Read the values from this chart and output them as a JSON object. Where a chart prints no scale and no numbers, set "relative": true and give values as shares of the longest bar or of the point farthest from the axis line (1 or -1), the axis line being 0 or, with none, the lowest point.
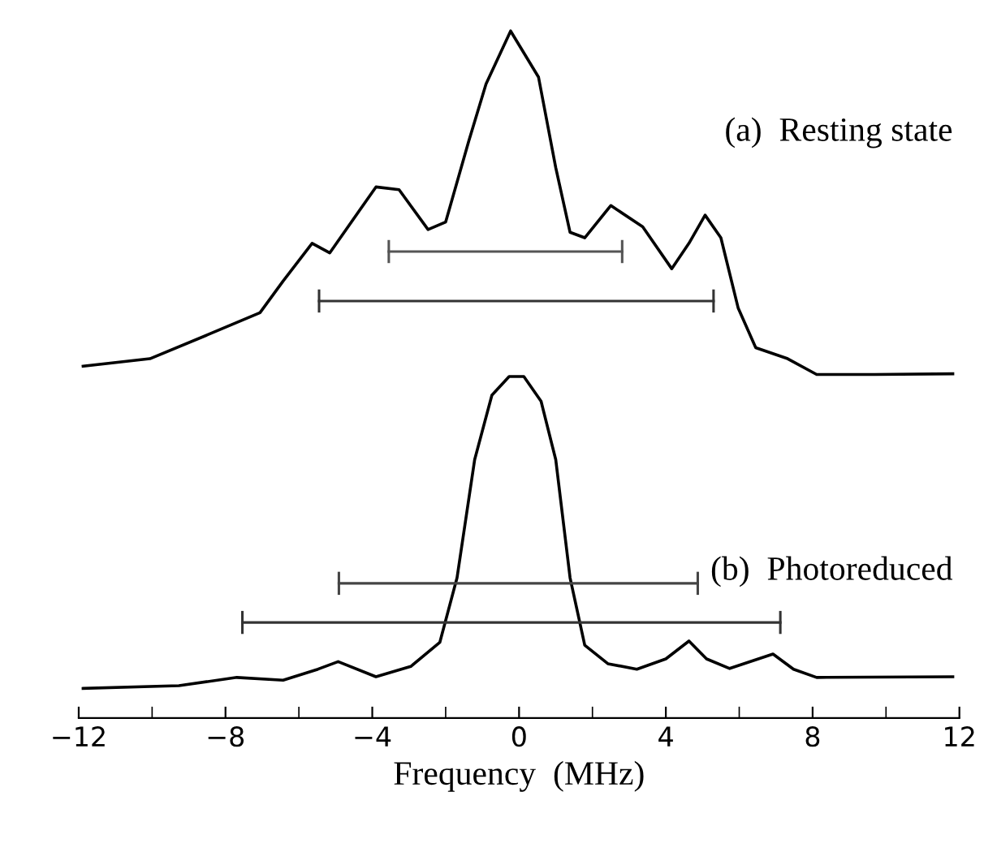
{
  "chart_data": {
    "type": "line",
    "relative": true,
    "xlabel": "Frequency  (MHz)",
    "xlim": [
      -12,
      12
    ],
    "xticks": [
      {
        "value": -12,
        "label": "−12"
      },
      {
        "value": -10,
        "label": null
      },
      {
        "value": -8,
        "label": "−8"
      },
      {
        "value": -6,
        "label": null
      },
      {
        "value": -4,
        "label": "−4"
      },
      {
        "value": -2,
        "label": null
      },
      0,
      {
        "value": 2,
        "label": null
      },
      4,
      {
        "value": 6,
        "label": null
      },
      8,
      {
        "value": 10,
        "label": null
      },
      12
    ],
    "tick_labels": "x",
    "grid": false,
    "series": [
      {
        "name": "(a)  Resting state",
        "color": "#000000",
        "x": [
          -11.88,
          -10.06,
          -8.48,
          -7.06,
          -6.43,
          -5.64,
          -5.16,
          -3.9,
          -3.27,
          -2.48,
          -2.0,
          -1.37,
          -0.9,
          -0.23,
          0.53,
          1.0,
          1.39,
          1.79,
          2.5,
          3.37,
          4.16,
          4.63,
          5.07,
          5.5,
          5.97,
          6.45,
          7.32,
          8.11,
          9.69,
          11.82
        ],
        "values": [
          0.512,
          0.523,
          0.558,
          0.59,
          0.636,
          0.691,
          0.677,
          0.773,
          0.769,
          0.711,
          0.722,
          0.84,
          0.923,
          1.0,
          0.933,
          0.801,
          0.707,
          0.699,
          0.746,
          0.715,
          0.654,
          0.691,
          0.732,
          0.699,
          0.597,
          0.539,
          0.523,
          0.5,
          0.5,
          0.501
        ]
      },
      {
        "name": "(b)  Photoreduced",
        "color": "#000000",
        "x": [
          -11.88,
          -9.27,
          -7.69,
          -6.43,
          -5.48,
          -4.93,
          -3.9,
          -2.95,
          -2.16,
          -1.69,
          -1.21,
          -0.74,
          -0.27,
          0.13,
          0.6,
          1.0,
          1.39,
          1.79,
          2.42,
          3.21,
          4.0,
          4.63,
          5.11,
          5.74,
          6.92,
          7.48,
          8.11,
          11.82
        ],
        "values": [
          0.043,
          0.047,
          0.059,
          0.055,
          0.071,
          0.082,
          0.06,
          0.075,
          0.11,
          0.204,
          0.376,
          0.47,
          0.497,
          0.497,
          0.461,
          0.376,
          0.204,
          0.106,
          0.079,
          0.071,
          0.086,
          0.112,
          0.086,
          0.072,
          0.093,
          0.071,
          0.059,
          0.06
        ]
      },
      {
        "color": "#555555",
        "x": [
          -3.55,
          2.81
        ],
        "values": [
          0.679,
          0.679
        ]
      },
      {
        "color": "#333333",
        "x": [
          -5.45,
          5.3
        ],
        "values": [
          0.607,
          0.607
        ]
      },
      {
        "color": "#444444",
        "x": [
          -4.91,
          4.87
        ],
        "values": [
          0.196,
          0.196
        ]
      },
      {
        "color": "#333333",
        "x": [
          -7.54,
          7.12
        ],
        "values": [
          0.139,
          0.139
        ]
      }
    ]
  }
}
